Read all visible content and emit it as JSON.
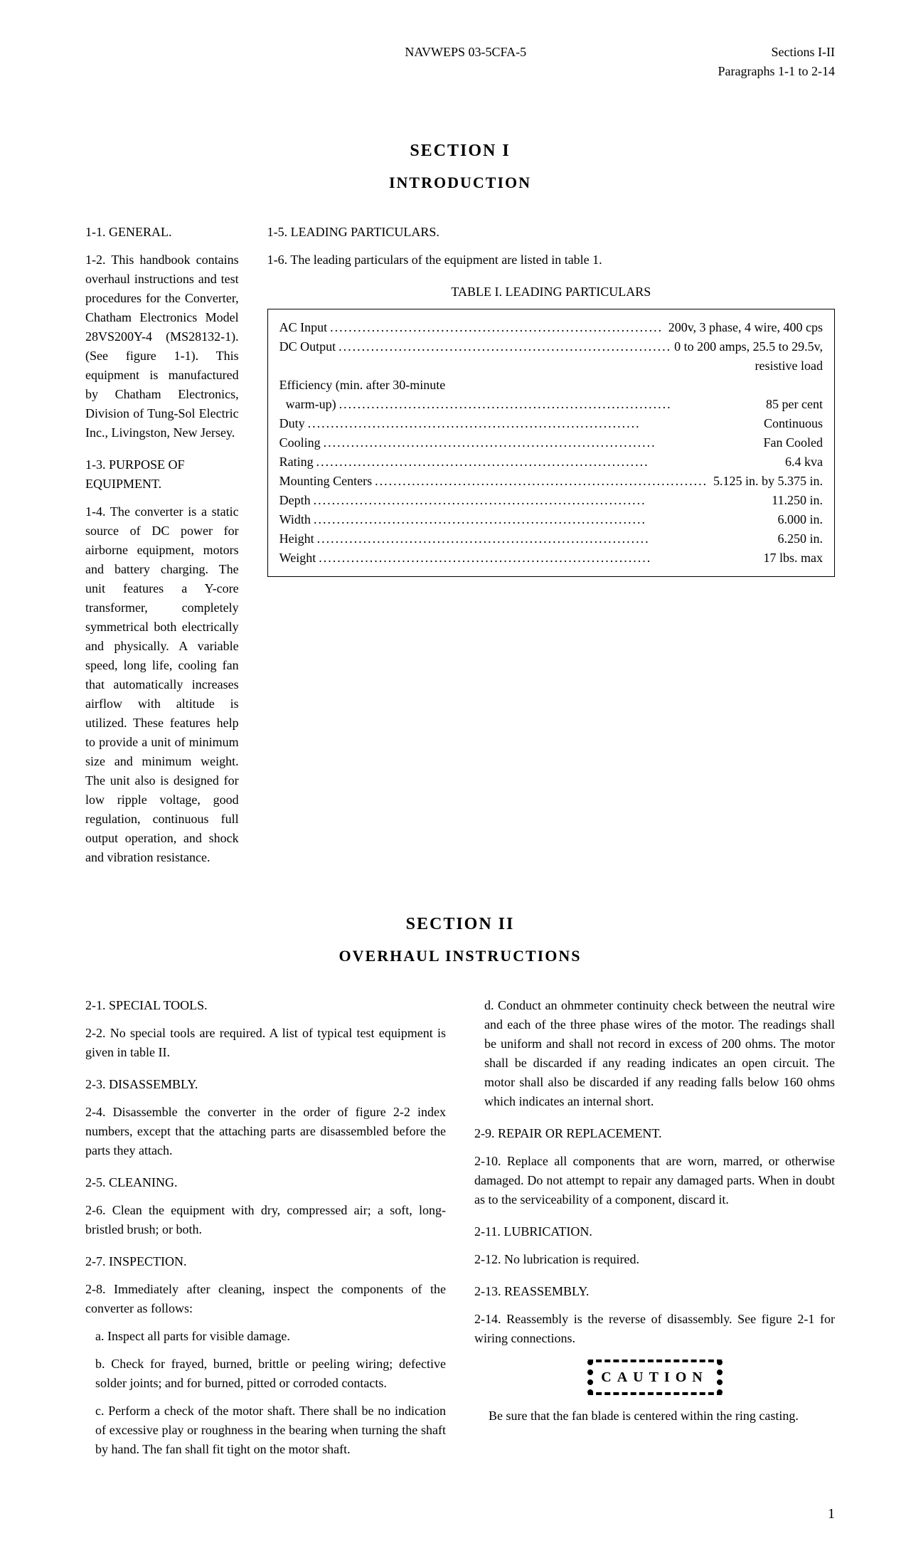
{
  "header": {
    "doc_id": "NAVWEPS 03-5CFA-5",
    "sections": "Sections I-II",
    "paragraphs": "Paragraphs 1-1 to 2-14"
  },
  "section1": {
    "title": "SECTION I",
    "subtitle": "INTRODUCTION",
    "p1_1": "1-1.  GENERAL.",
    "p1_2": "1-2.  This handbook contains overhaul instructions and test procedures for the Converter, Chatham Electronics Model 28VS200Y-4 (MS28132-1).  (See figure 1-1).  This equipment is manufactured by Chatham Electronics, Division of Tung-Sol Electric Inc., Livingston, New Jersey.",
    "p1_3": "1-3.  PURPOSE OF EQUIPMENT.",
    "p1_4": "1-4.  The converter is a static source of DC power for airborne equipment, motors and battery charging. The unit features a Y-core transformer, completely symmetrical both electrically and physically.  A variable speed, long life, cooling fan that automatically increases airflow with altitude is utilized.  These features help to provide a unit of minimum size and minimum weight.  The unit also is designed for low ripple voltage, good regulation, continuous full output operation, and shock and vibration resistance.",
    "p1_5": "1-5.  LEADING PARTICULARS.",
    "p1_6": "1-6.  The leading particulars of the equipment are listed in table 1.",
    "table_caption": "TABLE I.  LEADING PARTICULARS",
    "table": {
      "rows": [
        {
          "label": "AC Input",
          "value": "200v, 3 phase, 4 wire, 400 cps"
        },
        {
          "label": "DC Output",
          "value": "0 to 200 amps, 25.5 to 29.5v,"
        },
        {
          "label": "",
          "value": "resistive load",
          "right_only": true
        },
        {
          "label": "Efficiency (min. after 30-minute",
          "value": "",
          "no_dots": true
        },
        {
          "label": "  warm-up)",
          "value": "85 per cent"
        },
        {
          "label": "Duty",
          "value": "Continuous"
        },
        {
          "label": "Cooling",
          "value": "Fan Cooled"
        },
        {
          "label": "Rating",
          "value": "6.4 kva"
        },
        {
          "label": "Mounting Centers",
          "value": "5.125 in. by 5.375 in."
        },
        {
          "label": "Depth",
          "value": "11.250 in."
        },
        {
          "label": "Width",
          "value": "6.000 in."
        },
        {
          "label": "Height",
          "value": "6.250 in."
        },
        {
          "label": "Weight",
          "value": "17 lbs. max"
        }
      ]
    }
  },
  "section2": {
    "title": "SECTION II",
    "subtitle": "OVERHAUL INSTRUCTIONS",
    "p2_1": "2-1.  SPECIAL TOOLS.",
    "p2_2": "2-2.  No special tools are required. A list of typical test equipment is given in table II.",
    "p2_3": "2-3.  DISASSEMBLY.",
    "p2_4": "2-4.  Disassemble the converter in the order of figure 2-2 index numbers, except that the attaching parts are disassembled before the parts they attach.",
    "p2_5": "2-5.  CLEANING.",
    "p2_6": "2-6.  Clean the equipment with dry, compressed air; a soft, long-bristled brush; or both.",
    "p2_7": "2-7.  INSPECTION.",
    "p2_8": "2-8.  Immediately after cleaning, inspect the components of the converter as follows:",
    "p2_8a": "a. Inspect all parts for visible damage.",
    "p2_8b": "b. Check for frayed, burned, brittle or peeling wiring; defective solder joints; and for burned, pitted or corroded contacts.",
    "p2_8c": "c. Perform a check of the motor shaft. There shall be no indication of excessive play or roughness in the bearing when turning the shaft by hand. The fan shall fit tight on the motor shaft.",
    "p2_8d": "d. Conduct an ohmmeter continuity check between the neutral wire and each of the three phase wires of the motor.  The readings shall be uniform and shall not record in excess of 200 ohms. The motor shall be discarded if any reading indicates an open circuit. The motor shall also be discarded if any reading falls below 160 ohms which indicates an internal short.",
    "p2_9": "2-9.  REPAIR OR REPLACEMENT.",
    "p2_10": "2-10.  Replace all components that are worn, marred, or otherwise damaged. Do not attempt to repair any damaged parts. When in doubt as to the serviceability of a component, discard it.",
    "p2_11": "2-11.  LUBRICATION.",
    "p2_12": "2-12.  No lubrication is required.",
    "p2_13": "2-13.  REASSEMBLY.",
    "p2_14": "2-14.  Reassembly is the reverse of disassembly. See figure 2-1 for wiring connections.",
    "caution_label": "CAUTION",
    "caution_text": "Be sure that the fan blade is centered within the ring casting."
  },
  "page_number": "1"
}
